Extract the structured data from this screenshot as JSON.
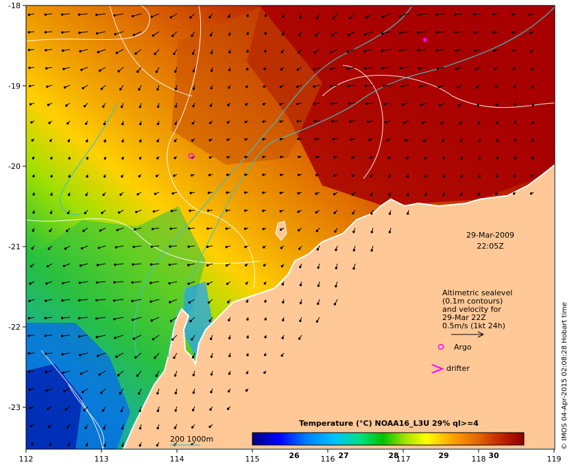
{
  "map": {
    "lon_ticks": [
      "112",
      "113",
      "114",
      "115",
      "116",
      "117",
      "118",
      "119"
    ],
    "lat_ticks": [
      "-18",
      "-19",
      "-20",
      "-21",
      "-22",
      "-23"
    ],
    "date": "29-Mar-2009",
    "time": "22:05Z",
    "side_text": "© IMOS 04-Apr-2015 02:08:28 Hobart time"
  },
  "legend": {
    "lines": [
      "Altimetric sealevel",
      "(0.1m contours)",
      "and velocity for",
      "29-Mar 22Z",
      "0.5m/s (1kt 24h)"
    ],
    "argo_label": "Argo",
    "drifter_label": "drifter",
    "argo_color": "#ff00ff",
    "drifter_color": "#ff00ff",
    "contour_label": "200  1000m",
    "contour_color": "#40c0c0"
  },
  "colorbar": {
    "title": "Temperature (°C) NOAA16_L3U 29% ql>=4",
    "ticks": [
      "26",
      "27",
      "28",
      "29",
      "30"
    ],
    "stops": [
      "#00007f",
      "#0000ff",
      "#0080ff",
      "#00c0ff",
      "#00e080",
      "#00c000",
      "#a0e000",
      "#ffff00",
      "#ffa000",
      "#e06000",
      "#c02000",
      "#8b0000"
    ]
  },
  "colors": {
    "land": "#ffc896",
    "sst_warm": "#a80000",
    "sst_mid": "#e08000",
    "sst_cool": "#20c030",
    "sst_cold": "#0050ff"
  }
}
